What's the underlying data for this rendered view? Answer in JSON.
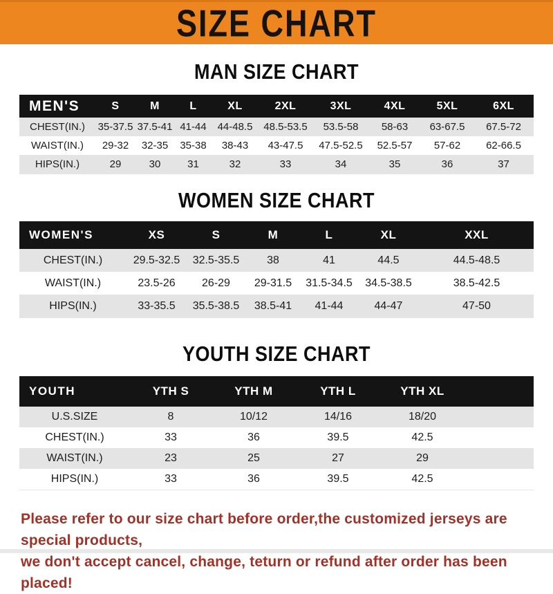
{
  "banner": {
    "title": "SIZE CHART"
  },
  "colors": {
    "banner_orange": "#ED861E",
    "table_header_black": "#141414",
    "row_gray": "#E4E4E4",
    "note_red": "#A23127"
  },
  "sections": {
    "men": {
      "heading": "MAN SIZE CHART",
      "table": {
        "header": [
          "MEN'S",
          "S",
          "M",
          "L",
          "XL",
          "2XL",
          "3XL",
          "4XL",
          "5XL",
          "6XL"
        ],
        "rows": [
          [
            "CHEST(IN.)",
            "35-37.5",
            "37.5-41",
            "41-44",
            "44-48.5",
            "48.5-53.5",
            "53.5-58",
            "58-63",
            "63-67.5",
            "67.5-72"
          ],
          [
            "WAIST(IN.)",
            "29-32",
            "32-35",
            "35-38",
            "38-43",
            "43-47.5",
            "47.5-52.5",
            "52.5-57",
            "57-62",
            "62-66.5"
          ],
          [
            "HIPS(IN.)",
            "29",
            "30",
            "31",
            "32",
            "33",
            "34",
            "35",
            "36",
            "37"
          ]
        ]
      }
    },
    "women": {
      "heading": "WOMEN SIZE CHART",
      "table": {
        "header": [
          "WOMEN'S",
          "XS",
          "S",
          "M",
          "L",
          "XL",
          "XXL"
        ],
        "rows": [
          [
            "CHEST(IN.)",
            "29.5-32.5",
            "32.5-35.5",
            "38",
            "41",
            "44.5",
            "44.5-48.5"
          ],
          [
            "WAIST(IN.)",
            "23.5-26",
            "26-29",
            "29-31.5",
            "31.5-34.5",
            "34.5-38.5",
            "38.5-42.5"
          ],
          [
            "HIPS(IN.)",
            "33-35.5",
            "35.5-38.5",
            "38.5-41",
            "41-44",
            "44-47",
            "47-50"
          ]
        ]
      }
    },
    "youth": {
      "heading": "YOUTH SIZE CHART",
      "table": {
        "header": [
          "YOUTH",
          "YTH S",
          "YTH M",
          "YTH L",
          "YTH XL"
        ],
        "rows": [
          [
            "U.S.SIZE",
            "8",
            "10/12",
            "14/16",
            "18/20"
          ],
          [
            "CHEST(IN.)",
            "33",
            "36",
            "39.5",
            "42.5"
          ],
          [
            "WAIST(IN.)",
            "23",
            "25",
            "27",
            "29"
          ],
          [
            "HIPS(IN.)",
            "33",
            "36",
            "39.5",
            "42.5"
          ]
        ]
      }
    }
  },
  "note": {
    "lines": [
      "Please refer to our size chart before order,the customized jerseys are special products,",
      "we don't accept cancel, change, teturn or refund after order has been placed!"
    ]
  }
}
